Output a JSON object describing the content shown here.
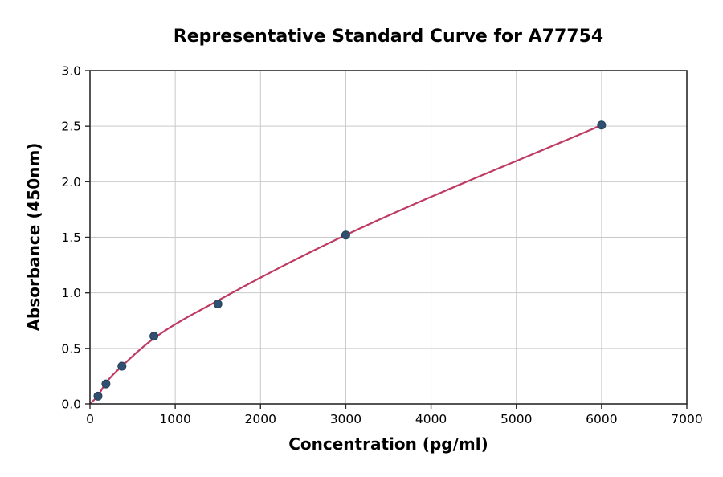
{
  "figure": {
    "title": "Representative Standard Curve for A77754",
    "xlabel": "Concentration (pg/ml)",
    "ylabel": "Absorbance (450nm)"
  },
  "chart_data": {
    "type": "scatter",
    "title": "Representative Standard Curve for A77754",
    "xlabel": "Concentration (pg/ml)",
    "ylabel": "Absorbance (450nm)",
    "xlim": [
      0,
      7000
    ],
    "ylim": [
      0.0,
      3.0
    ],
    "grid": true,
    "legend": "none",
    "x_ticks": {
      "values": [
        0,
        1000,
        2000,
        3000,
        4000,
        5000,
        6000,
        7000
      ],
      "labels": [
        "0",
        "1000",
        "2000",
        "3000",
        "4000",
        "5000",
        "6000",
        "7000"
      ]
    },
    "y_ticks": {
      "values": [
        0.0,
        0.5,
        1.0,
        1.5,
        2.0,
        2.5,
        3.0
      ],
      "labels": [
        "0.0",
        "0.5",
        "1.0",
        "1.5",
        "2.0",
        "2.5",
        "3.0"
      ]
    },
    "series": [
      {
        "name": "standard-points",
        "type": "scatter",
        "x": [
          93.75,
          187.5,
          375,
          750,
          1500,
          3000,
          6000
        ],
        "y": [
          0.07,
          0.18,
          0.34,
          0.61,
          0.9,
          1.52,
          2.51
        ]
      },
      {
        "name": "fitted-curve",
        "type": "line",
        "x": [
          0,
          93.75,
          187.5,
          375,
          750,
          1500,
          3000,
          6000
        ],
        "y": [
          0.0,
          0.075,
          0.19,
          0.34,
          0.59,
          0.93,
          1.52,
          2.51
        ]
      }
    ],
    "colors": {
      "curve": "#bf3a62",
      "marker": "#31506f",
      "marker_edge": "#24405a",
      "grid": "#c9c9c9",
      "axis": "#2a2a2a",
      "text": "#000000",
      "background": "#ffffff"
    }
  }
}
